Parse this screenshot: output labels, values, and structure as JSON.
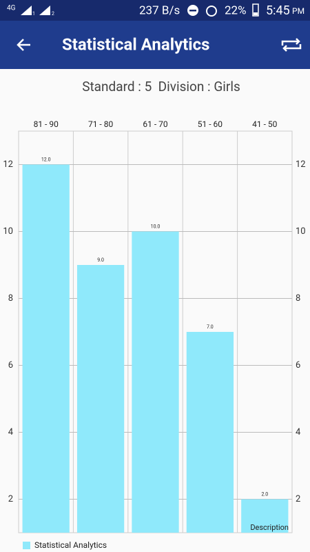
{
  "status_bar": {
    "network": "4G",
    "sim1": "1",
    "sim2": "2",
    "speed": "237 B/s",
    "battery": "22%",
    "time": "5:45",
    "period": "PM"
  },
  "app_bar": {
    "title": "Statistical Analytics"
  },
  "subtitle": "Standard : 5  Division : Girls",
  "chart_data": {
    "type": "bar",
    "categories": [
      "81 - 90",
      "71 - 80",
      "61 - 70",
      "51 - 60",
      "41 - 50"
    ],
    "series": [
      {
        "name": "Statistical Analytics",
        "color": "#8fe9fb",
        "values": [
          12,
          9,
          10,
          7,
          2
        ],
        "value_labels": [
          "12.0",
          "9.0",
          "10.0",
          "7.0",
          "2.0"
        ]
      }
    ],
    "ylim": [
      1,
      13
    ],
    "yticks": [
      2,
      4,
      6,
      8,
      10,
      12
    ],
    "grid": true,
    "legend": "bottom-left",
    "description": "Description"
  }
}
